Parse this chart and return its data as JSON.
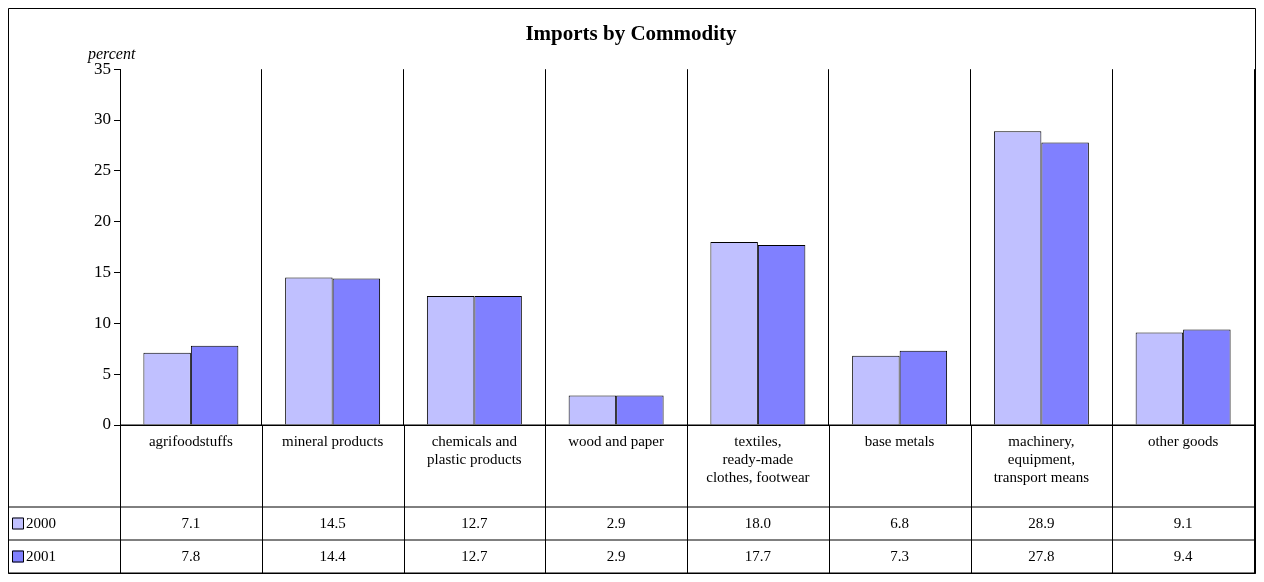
{
  "chart_data": {
    "type": "bar",
    "title": "Imports by Commodity",
    "ylabel": "percent",
    "categories": [
      "agrifoodstuffs",
      "mineral products",
      "chemicals and plastic products",
      "wood and paper",
      "textiles, ready-made clothes, footwear",
      "base metals",
      "machinery, equipment, transport means",
      "other goods"
    ],
    "series": [
      {
        "name": "2000",
        "color": "#c0c0ff",
        "values": [
          7.1,
          14.5,
          12.7,
          2.9,
          18.0,
          6.8,
          28.9,
          9.1
        ],
        "value_labels": [
          "7.1",
          "14.5",
          "12.7",
          "2.9",
          "18.0",
          "6.8",
          "28.9",
          "9.1"
        ]
      },
      {
        "name": "2001",
        "color": "#8080ff",
        "values": [
          7.8,
          14.4,
          12.7,
          2.9,
          17.7,
          7.3,
          27.8,
          9.4
        ],
        "value_labels": [
          "7.8",
          "14.4",
          "12.7",
          "2.9",
          "17.7",
          "7.3",
          "27.8",
          "9.4"
        ]
      }
    ],
    "ylim": [
      0,
      35
    ],
    "yticks": [
      0,
      5,
      10,
      15,
      20,
      25,
      30,
      35
    ],
    "grid": "x",
    "legend": "bottom left"
  }
}
